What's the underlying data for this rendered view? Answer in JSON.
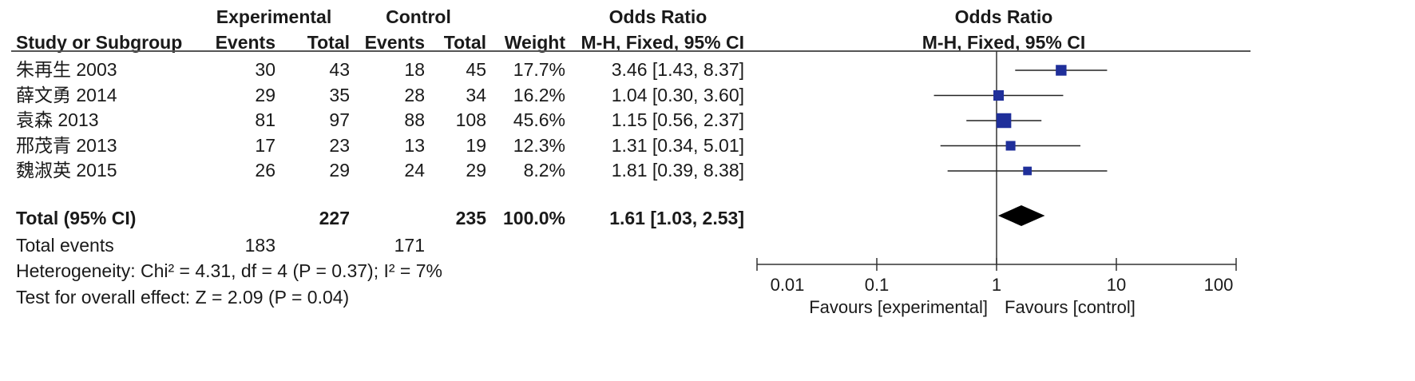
{
  "header": {
    "group_exp": "Experimental",
    "group_ctrl": "Control",
    "col_or": "Odds Ratio",
    "col_study": "Study or Subgroup",
    "col_events_exp": "Events",
    "col_total_exp": "Total",
    "col_events_ctrl": "Events",
    "col_total_ctrl": "Total",
    "col_weight": "Weight",
    "col_method": "M-H, Fixed, 95% CI",
    "plot_title": "Odds Ratio",
    "plot_method": "M-H, Fixed, 95% CI"
  },
  "studies": [
    {
      "name": "朱再生 2003",
      "exp_events": "30",
      "exp_total": "43",
      "ctrl_events": "18",
      "ctrl_total": "45",
      "weight": "17.7%",
      "ci_text": "3.46 [1.43, 8.37]",
      "or": 3.46,
      "lo": 1.43,
      "hi": 8.37,
      "w": 17.7
    },
    {
      "name": "薛文勇 2014",
      "exp_events": "29",
      "exp_total": "35",
      "ctrl_events": "28",
      "ctrl_total": "34",
      "weight": "16.2%",
      "ci_text": "1.04 [0.30, 3.60]",
      "or": 1.04,
      "lo": 0.3,
      "hi": 3.6,
      "w": 16.2
    },
    {
      "name": "袁森 2013",
      "exp_events": "81",
      "exp_total": "97",
      "ctrl_events": "88",
      "ctrl_total": "108",
      "weight": "45.6%",
      "ci_text": "1.15 [0.56, 2.37]",
      "or": 1.15,
      "lo": 0.56,
      "hi": 2.37,
      "w": 45.6
    },
    {
      "name": "邢茂青 2013",
      "exp_events": "17",
      "exp_total": "23",
      "ctrl_events": "13",
      "ctrl_total": "19",
      "weight": "12.3%",
      "ci_text": "1.31 [0.34, 5.01]",
      "or": 1.31,
      "lo": 0.34,
      "hi": 5.01,
      "w": 12.3
    },
    {
      "name": "魏淑英 2015",
      "exp_events": "26",
      "exp_total": "29",
      "ctrl_events": "24",
      "ctrl_total": "29",
      "weight": "8.2%",
      "ci_text": "1.81 [0.39, 8.38]",
      "or": 1.81,
      "lo": 0.39,
      "hi": 8.38,
      "w": 8.2
    }
  ],
  "total": {
    "label": "Total (95% CI)",
    "exp_total": "227",
    "ctrl_total": "235",
    "weight": "100.0%",
    "ci_text": "1.61 [1.03, 2.53]",
    "or": 1.61,
    "lo": 1.03,
    "hi": 2.53
  },
  "events": {
    "label": "Total events",
    "exp": "183",
    "ctrl": "171"
  },
  "heterogeneity": "Heterogeneity: Chi² = 4.31, df = 4 (P = 0.37); I² = 7%",
  "overall": "Test for overall effect: Z = 2.09 (P = 0.04)",
  "chart_data": {
    "type": "scatter",
    "x_scale": "log",
    "xlim": [
      0.01,
      100
    ],
    "ticks": [
      {
        "value": 0.01,
        "label": "0.01"
      },
      {
        "value": 0.1,
        "label": "0.1"
      },
      {
        "value": 1,
        "label": "1"
      },
      {
        "value": 10,
        "label": "10"
      },
      {
        "value": 100,
        "label": "100"
      }
    ],
    "favours_left": "Favours [experimental]",
    "favours_right": "Favours [control]",
    "null_line": 1,
    "marker_color": "#1f2f9a",
    "diamond_color": "#000000"
  }
}
